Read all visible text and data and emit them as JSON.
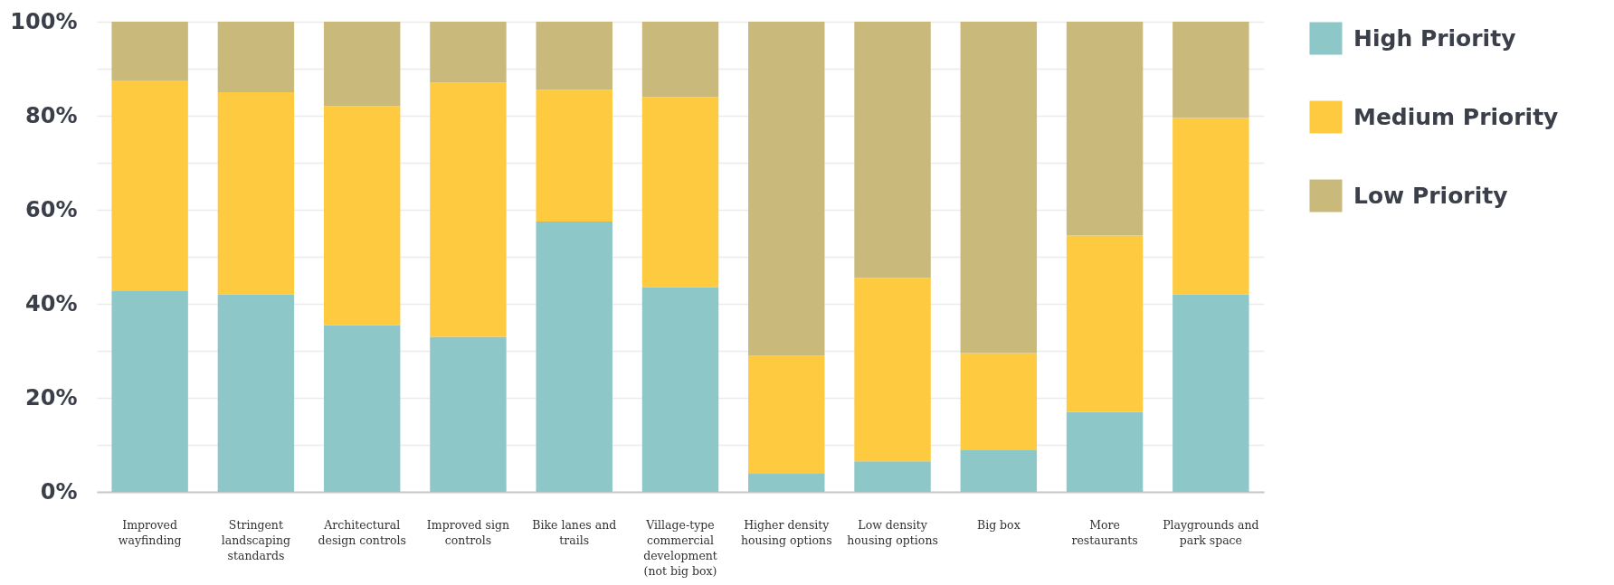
{
  "chart_data": {
    "type": "bar",
    "stacked": true,
    "categories": [
      "Improved wayfinding",
      "Stringent landscaping standards",
      "Architectural design controls",
      "Improved sign controls",
      "Bike lanes and trails",
      "Village-type commercial development (not big box)",
      "Higher density housing options",
      "Low density housing options",
      "Big box",
      "More restaurants",
      "Playgrounds and park space"
    ],
    "series": [
      {
        "name": "High Priority",
        "color": "#8ec7c8",
        "values": [
          42.7,
          42,
          35.5,
          33,
          57.5,
          43.5,
          4,
          6.5,
          9,
          17,
          42
        ]
      },
      {
        "name": "Medium Priority",
        "color": "#fdca40",
        "values": [
          44.8,
          43,
          46.5,
          54,
          28,
          40.5,
          25,
          39,
          20.5,
          37.5,
          37.5
        ]
      },
      {
        "name": "Low Priority",
        "color": "#c9b97b",
        "values": [
          12.5,
          15,
          18,
          13,
          14.5,
          16,
          71,
          54.5,
          70.5,
          45.5,
          20.5
        ]
      }
    ],
    "ylim": [
      0,
      100
    ],
    "yticks": [
      {
        "value": 0,
        "label": "0%"
      },
      {
        "value": 10,
        "label": null
      },
      {
        "value": 20,
        "label": "20%"
      },
      {
        "value": 30,
        "label": null
      },
      {
        "value": 40,
        "label": "40%"
      },
      {
        "value": 50,
        "label": null
      },
      {
        "value": 60,
        "label": "60%"
      },
      {
        "value": 70,
        "label": null
      },
      {
        "value": 80,
        "label": "80%"
      },
      {
        "value": 90,
        "label": null
      },
      {
        "value": 100,
        "label": "100%"
      }
    ],
    "grid": "y",
    "legend": "top right"
  }
}
